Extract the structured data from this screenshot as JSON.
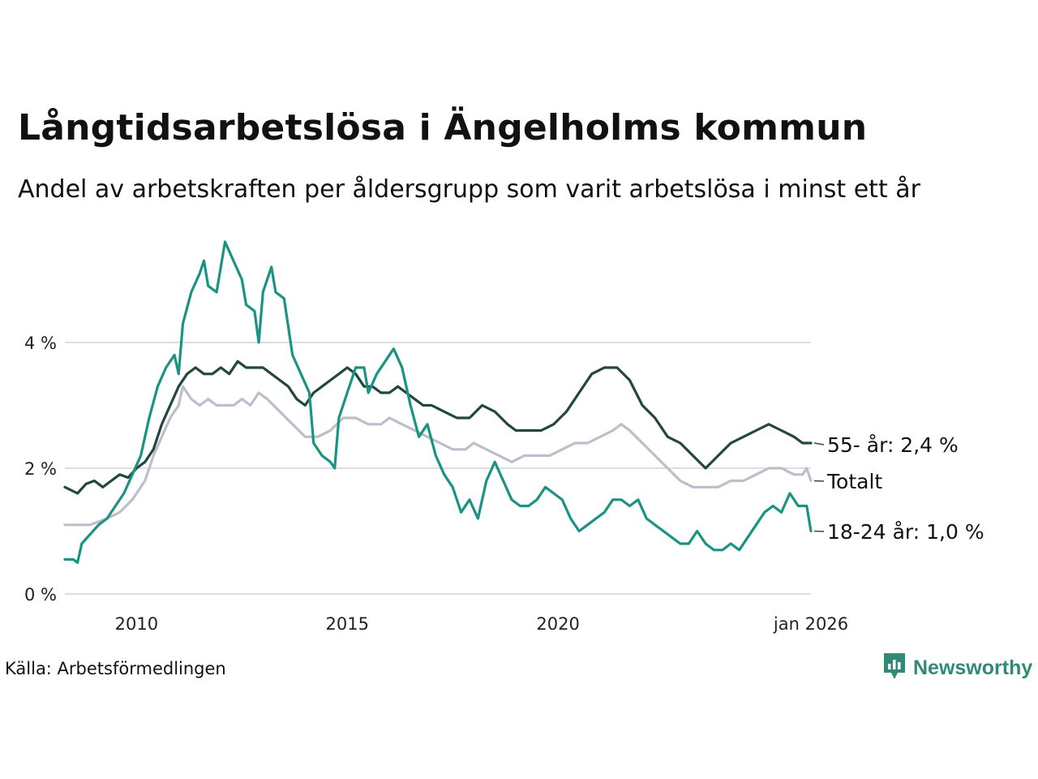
{
  "chart_data": {
    "type": "line",
    "title": "Långtidsarbetslösa i Ängelholms kommun",
    "subtitle": "Andel av arbetskraften per åldersgrupp som varit arbetslösa i minst ett år",
    "source": "Källa: Arbetsförmedlingen",
    "brand": "Newsworthy",
    "xlabel": "",
    "ylabel": "",
    "xlim": [
      2008.3,
      2026.0
    ],
    "ylim": [
      0,
      5.5
    ],
    "grid": true,
    "y_ticks": [
      {
        "value": 0,
        "label": "0 %"
      },
      {
        "value": 2,
        "label": "2 %"
      },
      {
        "value": 4,
        "label": "4 %"
      }
    ],
    "x_ticks": [
      {
        "value": 2010,
        "label": "2010"
      },
      {
        "value": 2015,
        "label": "2015"
      },
      {
        "value": 2020,
        "label": "2020"
      },
      {
        "value": 2026,
        "label": "jan 2026"
      }
    ],
    "series": [
      {
        "name": "Totalt",
        "label": "Totalt",
        "color": "#bfbccb",
        "points": [
          [
            2008.3,
            1.1
          ],
          [
            2008.9,
            1.1
          ],
          [
            2009.3,
            1.2
          ],
          [
            2009.6,
            1.3
          ],
          [
            2009.9,
            1.5
          ],
          [
            2010.2,
            1.8
          ],
          [
            2010.4,
            2.2
          ],
          [
            2010.6,
            2.5
          ],
          [
            2010.8,
            2.8
          ],
          [
            2011.0,
            3.0
          ],
          [
            2011.1,
            3.3
          ],
          [
            2011.3,
            3.1
          ],
          [
            2011.5,
            3.0
          ],
          [
            2011.7,
            3.1
          ],
          [
            2011.9,
            3.0
          ],
          [
            2012.3,
            3.0
          ],
          [
            2012.5,
            3.1
          ],
          [
            2012.7,
            3.0
          ],
          [
            2012.9,
            3.2
          ],
          [
            2013.1,
            3.1
          ],
          [
            2013.4,
            2.9
          ],
          [
            2013.7,
            2.7
          ],
          [
            2014.0,
            2.5
          ],
          [
            2014.3,
            2.5
          ],
          [
            2014.6,
            2.6
          ],
          [
            2014.9,
            2.8
          ],
          [
            2015.2,
            2.8
          ],
          [
            2015.5,
            2.7
          ],
          [
            2015.8,
            2.7
          ],
          [
            2016.0,
            2.8
          ],
          [
            2016.3,
            2.7
          ],
          [
            2016.6,
            2.6
          ],
          [
            2016.9,
            2.5
          ],
          [
            2017.2,
            2.4
          ],
          [
            2017.5,
            2.3
          ],
          [
            2017.8,
            2.3
          ],
          [
            2018.0,
            2.4
          ],
          [
            2018.3,
            2.3
          ],
          [
            2018.6,
            2.2
          ],
          [
            2018.9,
            2.1
          ],
          [
            2019.2,
            2.2
          ],
          [
            2019.5,
            2.2
          ],
          [
            2019.8,
            2.2
          ],
          [
            2020.1,
            2.3
          ],
          [
            2020.4,
            2.4
          ],
          [
            2020.7,
            2.4
          ],
          [
            2021.0,
            2.5
          ],
          [
            2021.3,
            2.6
          ],
          [
            2021.5,
            2.7
          ],
          [
            2021.7,
            2.6
          ],
          [
            2022.0,
            2.4
          ],
          [
            2022.3,
            2.2
          ],
          [
            2022.6,
            2.0
          ],
          [
            2022.9,
            1.8
          ],
          [
            2023.2,
            1.7
          ],
          [
            2023.5,
            1.7
          ],
          [
            2023.8,
            1.7
          ],
          [
            2024.1,
            1.8
          ],
          [
            2024.4,
            1.8
          ],
          [
            2024.7,
            1.9
          ],
          [
            2025.0,
            2.0
          ],
          [
            2025.3,
            2.0
          ],
          [
            2025.6,
            1.9
          ],
          [
            2025.8,
            1.9
          ],
          [
            2025.9,
            2.0
          ],
          [
            2026.0,
            1.8
          ]
        ]
      },
      {
        "name": "55- år",
        "label": "55- år: 2,4 %",
        "color": "#21473e",
        "points": [
          [
            2008.3,
            1.7
          ],
          [
            2008.6,
            1.6
          ],
          [
            2008.8,
            1.75
          ],
          [
            2009.0,
            1.8
          ],
          [
            2009.2,
            1.7
          ],
          [
            2009.4,
            1.8
          ],
          [
            2009.6,
            1.9
          ],
          [
            2009.8,
            1.85
          ],
          [
            2010.0,
            2.0
          ],
          [
            2010.2,
            2.1
          ],
          [
            2010.4,
            2.3
          ],
          [
            2010.6,
            2.7
          ],
          [
            2010.8,
            3.0
          ],
          [
            2011.0,
            3.3
          ],
          [
            2011.2,
            3.5
          ],
          [
            2011.4,
            3.6
          ],
          [
            2011.6,
            3.5
          ],
          [
            2011.8,
            3.5
          ],
          [
            2012.0,
            3.6
          ],
          [
            2012.2,
            3.5
          ],
          [
            2012.4,
            3.7
          ],
          [
            2012.6,
            3.6
          ],
          [
            2012.8,
            3.6
          ],
          [
            2013.0,
            3.6
          ],
          [
            2013.2,
            3.5
          ],
          [
            2013.4,
            3.4
          ],
          [
            2013.6,
            3.3
          ],
          [
            2013.8,
            3.1
          ],
          [
            2014.0,
            3.0
          ],
          [
            2014.2,
            3.2
          ],
          [
            2014.4,
            3.3
          ],
          [
            2014.6,
            3.4
          ],
          [
            2014.8,
            3.5
          ],
          [
            2015.0,
            3.6
          ],
          [
            2015.2,
            3.5
          ],
          [
            2015.4,
            3.3
          ],
          [
            2015.6,
            3.3
          ],
          [
            2015.8,
            3.2
          ],
          [
            2016.0,
            3.2
          ],
          [
            2016.2,
            3.3
          ],
          [
            2016.4,
            3.2
          ],
          [
            2016.6,
            3.1
          ],
          [
            2016.8,
            3.0
          ],
          [
            2017.0,
            3.0
          ],
          [
            2017.3,
            2.9
          ],
          [
            2017.6,
            2.8
          ],
          [
            2017.9,
            2.8
          ],
          [
            2018.2,
            3.0
          ],
          [
            2018.5,
            2.9
          ],
          [
            2018.8,
            2.7
          ],
          [
            2019.0,
            2.6
          ],
          [
            2019.3,
            2.6
          ],
          [
            2019.6,
            2.6
          ],
          [
            2019.9,
            2.7
          ],
          [
            2020.2,
            2.9
          ],
          [
            2020.5,
            3.2
          ],
          [
            2020.8,
            3.5
          ],
          [
            2021.1,
            3.6
          ],
          [
            2021.4,
            3.6
          ],
          [
            2021.7,
            3.4
          ],
          [
            2022.0,
            3.0
          ],
          [
            2022.3,
            2.8
          ],
          [
            2022.6,
            2.5
          ],
          [
            2022.9,
            2.4
          ],
          [
            2023.2,
            2.2
          ],
          [
            2023.5,
            2.0
          ],
          [
            2023.8,
            2.2
          ],
          [
            2024.1,
            2.4
          ],
          [
            2024.4,
            2.5
          ],
          [
            2024.7,
            2.6
          ],
          [
            2025.0,
            2.7
          ],
          [
            2025.3,
            2.6
          ],
          [
            2025.6,
            2.5
          ],
          [
            2025.8,
            2.4
          ],
          [
            2026.0,
            2.4
          ]
        ]
      },
      {
        "name": "18-24 år",
        "label": "18-24 år: 1,0 %",
        "color": "#1a9382",
        "points": [
          [
            2008.3,
            0.55
          ],
          [
            2008.5,
            0.55
          ],
          [
            2008.6,
            0.5
          ],
          [
            2008.7,
            0.8
          ],
          [
            2008.9,
            0.95
          ],
          [
            2009.1,
            1.1
          ],
          [
            2009.3,
            1.2
          ],
          [
            2009.5,
            1.4
          ],
          [
            2009.7,
            1.6
          ],
          [
            2009.9,
            1.9
          ],
          [
            2010.1,
            2.2
          ],
          [
            2010.3,
            2.8
          ],
          [
            2010.5,
            3.3
          ],
          [
            2010.7,
            3.6
          ],
          [
            2010.9,
            3.8
          ],
          [
            2011.0,
            3.5
          ],
          [
            2011.1,
            4.3
          ],
          [
            2011.3,
            4.8
          ],
          [
            2011.5,
            5.1
          ],
          [
            2011.6,
            5.3
          ],
          [
            2011.7,
            4.9
          ],
          [
            2011.9,
            4.8
          ],
          [
            2012.1,
            5.6
          ],
          [
            2012.3,
            5.3
          ],
          [
            2012.5,
            5.0
          ],
          [
            2012.6,
            4.6
          ],
          [
            2012.8,
            4.5
          ],
          [
            2012.9,
            4.0
          ],
          [
            2013.0,
            4.8
          ],
          [
            2013.2,
            5.2
          ],
          [
            2013.3,
            4.8
          ],
          [
            2013.5,
            4.7
          ],
          [
            2013.7,
            3.8
          ],
          [
            2013.9,
            3.5
          ],
          [
            2014.1,
            3.2
          ],
          [
            2014.2,
            2.4
          ],
          [
            2014.4,
            2.2
          ],
          [
            2014.6,
            2.1
          ],
          [
            2014.7,
            2.0
          ],
          [
            2014.8,
            2.8
          ],
          [
            2015.0,
            3.2
          ],
          [
            2015.2,
            3.6
          ],
          [
            2015.4,
            3.6
          ],
          [
            2015.5,
            3.2
          ],
          [
            2015.7,
            3.5
          ],
          [
            2015.9,
            3.7
          ],
          [
            2016.1,
            3.9
          ],
          [
            2016.3,
            3.6
          ],
          [
            2016.5,
            3.0
          ],
          [
            2016.7,
            2.5
          ],
          [
            2016.9,
            2.7
          ],
          [
            2017.1,
            2.2
          ],
          [
            2017.3,
            1.9
          ],
          [
            2017.5,
            1.7
          ],
          [
            2017.7,
            1.3
          ],
          [
            2017.9,
            1.5
          ],
          [
            2018.1,
            1.2
          ],
          [
            2018.3,
            1.8
          ],
          [
            2018.5,
            2.1
          ],
          [
            2018.7,
            1.8
          ],
          [
            2018.9,
            1.5
          ],
          [
            2019.1,
            1.4
          ],
          [
            2019.3,
            1.4
          ],
          [
            2019.5,
            1.5
          ],
          [
            2019.7,
            1.7
          ],
          [
            2019.9,
            1.6
          ],
          [
            2020.1,
            1.5
          ],
          [
            2020.3,
            1.2
          ],
          [
            2020.5,
            1.0
          ],
          [
            2020.7,
            1.1
          ],
          [
            2020.9,
            1.2
          ],
          [
            2021.1,
            1.3
          ],
          [
            2021.3,
            1.5
          ],
          [
            2021.5,
            1.5
          ],
          [
            2021.7,
            1.4
          ],
          [
            2021.9,
            1.5
          ],
          [
            2022.1,
            1.2
          ],
          [
            2022.3,
            1.1
          ],
          [
            2022.5,
            1.0
          ],
          [
            2022.7,
            0.9
          ],
          [
            2022.9,
            0.8
          ],
          [
            2023.1,
            0.8
          ],
          [
            2023.3,
            1.0
          ],
          [
            2023.5,
            0.8
          ],
          [
            2023.7,
            0.7
          ],
          [
            2023.9,
            0.7
          ],
          [
            2024.1,
            0.8
          ],
          [
            2024.3,
            0.7
          ],
          [
            2024.5,
            0.9
          ],
          [
            2024.7,
            1.1
          ],
          [
            2024.9,
            1.3
          ],
          [
            2025.1,
            1.4
          ],
          [
            2025.3,
            1.3
          ],
          [
            2025.5,
            1.6
          ],
          [
            2025.7,
            1.4
          ],
          [
            2025.9,
            1.4
          ],
          [
            2026.0,
            1.0
          ]
        ]
      }
    ]
  }
}
